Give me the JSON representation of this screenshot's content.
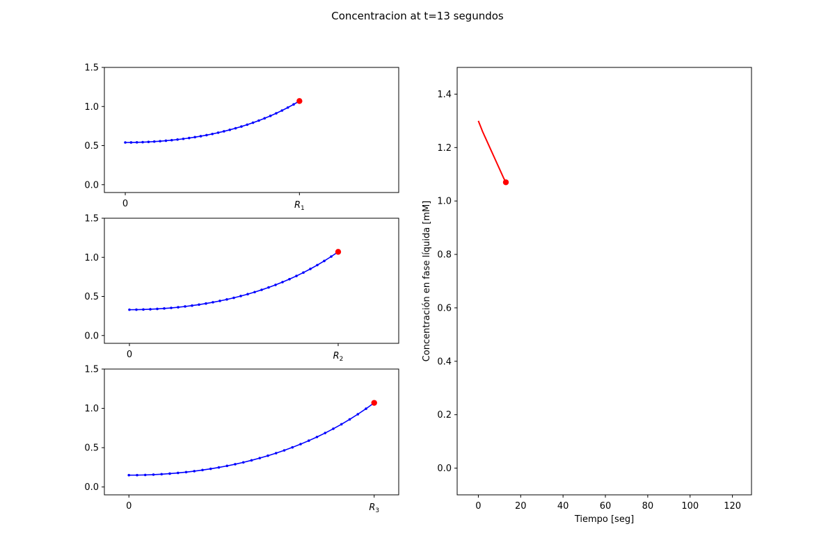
{
  "figure": {
    "suptitle": "Concentracion at t=13 segundos"
  },
  "colors": {
    "profile_line": "#0000ff",
    "surface_marker": "#ff0000",
    "time_line": "#ff0000"
  },
  "chart_data": [
    {
      "type": "line",
      "name": "panel-1",
      "x_tick_labels": [
        "0",
        "R",
        "1"
      ],
      "y_ticks": [
        "0.0",
        "0.5",
        "1.0",
        "1.5"
      ],
      "ylim": [
        -0.1,
        1.5
      ],
      "xlim": [
        -0.12,
        1.57
      ],
      "radius": 1.0,
      "center_value": 0.54,
      "surface_value": 1.07,
      "n_points": 31
    },
    {
      "type": "line",
      "name": "panel-2",
      "x_tick_labels": [
        "0",
        "R",
        "2"
      ],
      "y_ticks": [
        "0.0",
        "0.5",
        "1.0",
        "1.5"
      ],
      "ylim": [
        -0.1,
        1.5
      ],
      "xlim": [
        -0.12,
        1.29
      ],
      "radius": 1.0,
      "center_value": 0.33,
      "surface_value": 1.07,
      "n_points": 31
    },
    {
      "type": "line",
      "name": "panel-3",
      "x_tick_labels": [
        "0",
        "R",
        "3"
      ],
      "y_ticks": [
        "0.0",
        "0.5",
        "1.0",
        "1.5"
      ],
      "ylim": [
        -0.1,
        1.5
      ],
      "xlim": [
        -0.1,
        1.1
      ],
      "radius": 1.0,
      "center_value": 0.15,
      "surface_value": 1.07,
      "n_points": 31
    },
    {
      "type": "line",
      "name": "liquid-phase",
      "xlabel": "Tiempo [seg]",
      "ylabel": "Concentración en fase líquida [mM]",
      "x_ticks": [
        "0",
        "20",
        "40",
        "60",
        "80",
        "100",
        "120"
      ],
      "y_ticks": [
        "0.0",
        "0.2",
        "0.4",
        "0.6",
        "0.8",
        "1.0",
        "1.2",
        "1.4"
      ],
      "xlim": [
        -10,
        129
      ],
      "ylim": [
        -0.1,
        1.5
      ],
      "x": [
        0,
        2,
        4,
        6,
        8,
        10,
        12,
        13
      ],
      "y": [
        1.3,
        1.26,
        1.225,
        1.19,
        1.155,
        1.12,
        1.085,
        1.07
      ]
    }
  ]
}
